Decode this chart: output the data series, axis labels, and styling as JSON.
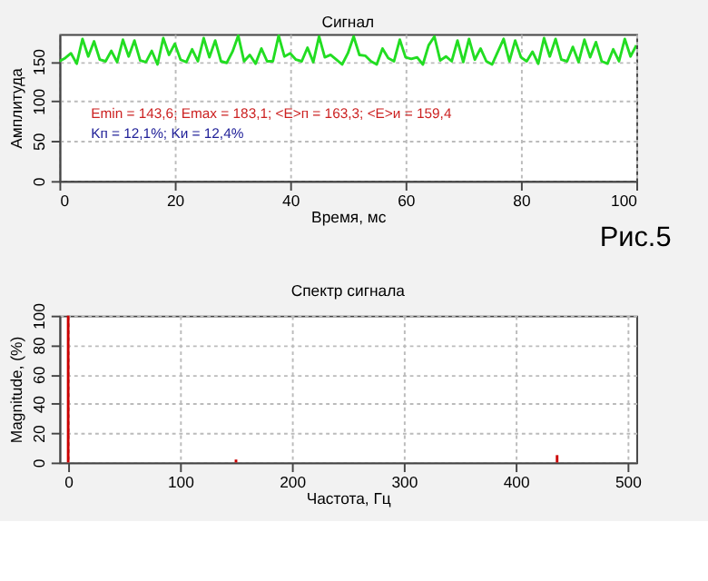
{
  "chart_data": [
    {
      "type": "line",
      "title": "Сигнал",
      "xlabel": "Время, мс",
      "ylabel": "Амплитуда",
      "x": [
        0,
        1,
        2,
        3,
        4,
        5,
        6,
        7,
        8,
        9,
        10,
        11,
        12,
        13,
        14,
        15,
        16,
        17,
        18,
        19,
        20,
        21,
        22,
        23,
        24,
        25,
        26,
        27,
        28,
        29,
        30,
        31,
        32,
        33,
        34,
        35,
        36,
        37,
        38,
        39,
        40,
        41,
        42,
        43,
        44,
        45,
        46,
        47,
        48,
        49,
        50,
        51,
        52,
        53,
        54,
        55,
        56,
        57,
        58,
        59,
        60,
        61,
        62,
        63,
        64,
        65,
        66,
        67,
        68,
        69,
        70,
        71,
        72,
        73,
        74,
        75,
        76,
        77,
        78,
        79,
        80,
        81,
        82,
        83,
        84,
        85,
        86,
        87,
        88,
        89,
        90,
        91,
        92,
        93,
        94,
        95,
        96,
        97,
        98,
        99,
        100
      ],
      "series": [
        {
          "color": "#22dd22",
          "values": [
            150,
            154,
            160,
            147,
            178,
            156,
            175,
            152,
            150,
            163,
            149,
            177,
            156,
            176,
            151,
            149,
            163,
            146,
            179,
            158,
            172,
            152,
            149,
            165,
            150,
            179,
            155,
            176,
            150,
            148,
            162,
            182,
            150,
            158,
            147,
            166,
            150,
            150,
            182,
            156,
            160,
            152,
            150,
            167,
            149,
            181,
            155,
            158,
            152,
            146,
            160,
            181,
            158,
            157,
            150,
            146,
            166,
            154,
            150,
            177,
            155,
            153,
            155,
            146,
            170,
            181,
            151,
            156,
            150,
            176,
            149,
            178,
            152,
            166,
            150,
            146,
            162,
            178,
            150,
            176,
            155,
            150,
            162,
            147,
            179,
            156,
            178,
            152,
            150,
            168,
            149,
            177,
            155,
            174,
            150,
            147,
            165,
            150,
            178,
            156,
            170
          ]
        }
      ],
      "xlim": [
        0,
        100
      ],
      "xticks": [
        0,
        20,
        40,
        60,
        80,
        100
      ],
      "ylim": [
        0,
        184
      ],
      "yticks": [
        0,
        50,
        100,
        150
      ],
      "grid": true,
      "annotations": [
        "Emin = 143,6; Emax = 183,1; <E>п = 163,3; <E>и = 159,4",
        "Kп = 12,1%; Kи = 12,4%",
        "Рис.5"
      ]
    },
    {
      "type": "bar",
      "title": "Спектр сигнала",
      "xlabel": "Частота, Гц",
      "ylabel": "Magnitude, (%)",
      "x": [
        0,
        150,
        437
      ],
      "values": [
        100,
        2,
        5
      ],
      "color": "#cc0000",
      "xlim": [
        0,
        500
      ],
      "xticks": [
        0,
        100,
        200,
        300,
        400,
        500
      ],
      "ylim": [
        0,
        100
      ],
      "yticks": [
        0,
        20,
        40,
        60,
        80,
        100
      ],
      "grid": true
    }
  ]
}
